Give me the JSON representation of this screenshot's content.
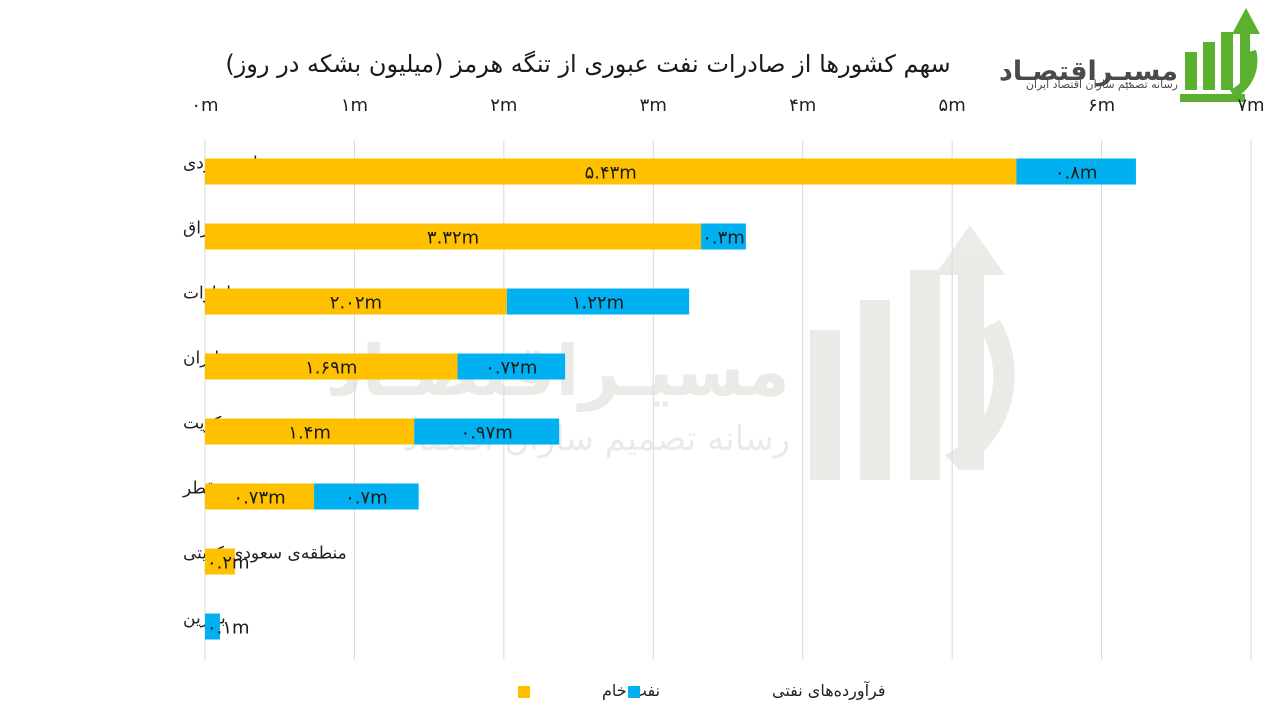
{
  "chart_data": {
    "type": "bar",
    "orientation": "horizontal",
    "stacked": true,
    "title": "سهم کشورها از صادرات نفت عبوری از تنگه هرمز (میلیون بشکه در روز)",
    "xlim": [
      0,
      7
    ],
    "x_ticks": [
      "۰m",
      "۱m",
      "۲m",
      "۳m",
      "۴m",
      "۵m",
      "۶m",
      "۷m"
    ],
    "x_axis_position": "top",
    "grid": true,
    "legend_position": "bottom",
    "categories": [
      "عربستان سعودی",
      "عراق",
      "امارات",
      "ایران",
      "کویت",
      "قطر",
      "منطقه‌ی سعودی-کویتی",
      "بحرین"
    ],
    "series": [
      {
        "name": "نفت خام",
        "color": "#FFC000",
        "values": [
          5.43,
          3.32,
          2.02,
          1.69,
          1.4,
          0.73,
          0.2,
          null
        ],
        "labels": [
          "۵.۴۳m",
          "۳.۳۲m",
          "۲.۰۲m",
          "۱.۶۹m",
          "۱.۴m",
          "۰.۷۳m",
          "۰.۲m",
          ""
        ]
      },
      {
        "name": "فرآورده‌های نفتی",
        "color": "#00B0F0",
        "values": [
          0.8,
          0.3,
          1.22,
          0.72,
          0.97,
          0.7,
          null,
          0.1
        ],
        "labels": [
          "۰.۸m",
          "۰.۳m",
          "۱.۲۲m",
          "۰.۷۲m",
          "۰.۹۷m",
          "۰.۷m",
          "",
          "۰.۱m"
        ]
      }
    ]
  },
  "logo": {
    "name": "مسیـراقتصـاد",
    "tagline": "رسانه تصمیم سازان اقتصاد ایران",
    "color": "#5CB030"
  },
  "watermark": {
    "name": "مسیـراقتصـاد",
    "tagline": "رسانه تصمیم سازان اقتصاد"
  }
}
